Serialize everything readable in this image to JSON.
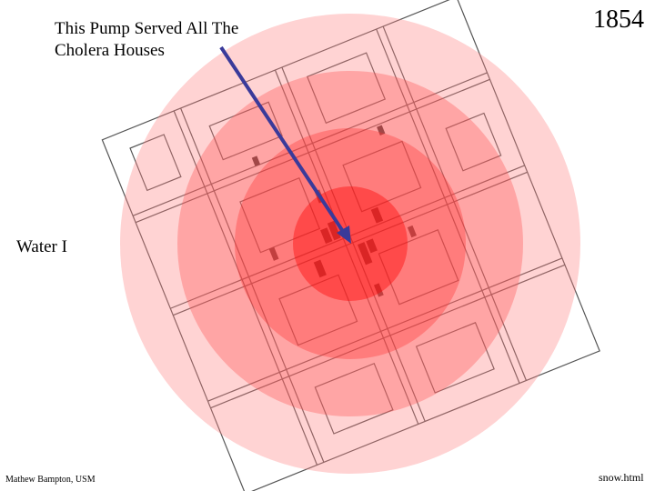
{
  "annotation": {
    "lines": [
      "This Pump Served All The",
      "Cholera Houses"
    ]
  },
  "year": "1854",
  "side_label": "Water I",
  "credit": "Mathew Bampton, USM",
  "link": "snow.html"
}
